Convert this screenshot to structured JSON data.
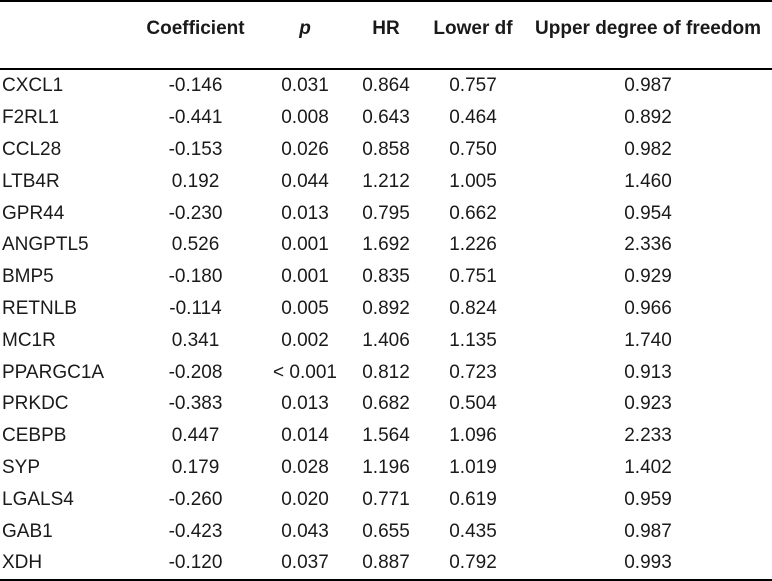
{
  "headers": [
    "",
    "Coefficient",
    "p",
    "HR",
    "Lower df",
    "Upper degree of freedom"
  ],
  "rows": [
    [
      "CXCL1",
      "-0.146",
      "0.031",
      "0.864",
      "0.757",
      "0.987"
    ],
    [
      "F2RL1",
      "-0.441",
      "0.008",
      "0.643",
      "0.464",
      "0.892"
    ],
    [
      "CCL28",
      "-0.153",
      "0.026",
      "0.858",
      "0.750",
      "0.982"
    ],
    [
      "LTB4R",
      "0.192",
      "0.044",
      "1.212",
      "1.005",
      "1.460"
    ],
    [
      "GPR44",
      "-0.230",
      "0.013",
      "0.795",
      "0.662",
      "0.954"
    ],
    [
      "ANGPTL5",
      "0.526",
      "0.001",
      "1.692",
      "1.226",
      "2.336"
    ],
    [
      "BMP5",
      "-0.180",
      "0.001",
      "0.835",
      "0.751",
      "0.929"
    ],
    [
      "RETNLB",
      "-0.114",
      "0.005",
      "0.892",
      "0.824",
      "0.966"
    ],
    [
      "MC1R",
      "0.341",
      "0.002",
      "1.406",
      "1.135",
      "1.740"
    ],
    [
      "PPARGC1A",
      "-0.208",
      "< 0.001",
      "0.812",
      "0.723",
      "0.913"
    ],
    [
      "PRKDC",
      "-0.383",
      "0.013",
      "0.682",
      "0.504",
      "0.923"
    ],
    [
      "CEBPB",
      "0.447",
      "0.014",
      "1.564",
      "1.096",
      "2.233"
    ],
    [
      "SYP",
      "0.179",
      "0.028",
      "1.196",
      "1.019",
      "1.402"
    ],
    [
      "LGALS4",
      "-0.260",
      "0.020",
      "0.771",
      "0.619",
      "0.959"
    ],
    [
      "GAB1",
      "-0.423",
      "0.043",
      "0.655",
      "0.435",
      "0.987"
    ],
    [
      "XDH",
      "-0.120",
      "0.037",
      "0.887",
      "0.792",
      "0.993"
    ]
  ]
}
